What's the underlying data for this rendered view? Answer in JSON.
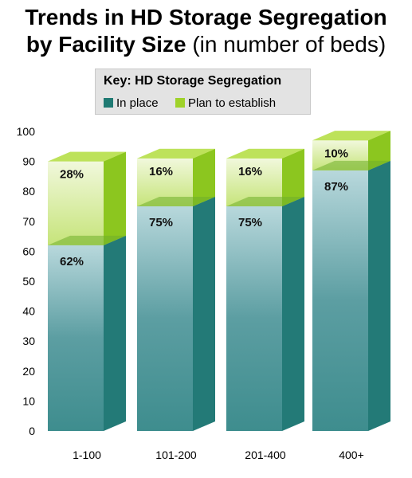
{
  "title": {
    "line1": "Trends in HD Storage Segregation",
    "line2_main": "by Facility Size",
    "line2_sub": "(in number of beds)"
  },
  "legend": {
    "title": "Key: HD Storage Segregation",
    "items": [
      {
        "label": "In place",
        "color": "#1f7a73"
      },
      {
        "label": "Plan to establish",
        "color": "#9fd22a"
      }
    ]
  },
  "chart_data": {
    "type": "bar",
    "stacked": true,
    "categories": [
      "1-100",
      "101-200",
      "201-400",
      "400+"
    ],
    "series": [
      {
        "name": "In place",
        "values": [
          62,
          75,
          75,
          87
        ],
        "labels": [
          "62%",
          "75%",
          "75%",
          "87%"
        ],
        "color": "#1f7a73"
      },
      {
        "name": "Plan to establish",
        "values": [
          28,
          16,
          16,
          10
        ],
        "labels": [
          "28%",
          "16%",
          "16%",
          "10%"
        ],
        "color": "#9fd22a"
      }
    ],
    "yticks": [
      0,
      10,
      20,
      30,
      40,
      50,
      60,
      70,
      80,
      90,
      100
    ],
    "ylim": [
      0,
      100
    ],
    "grid": false,
    "legend_position": "top-center"
  }
}
